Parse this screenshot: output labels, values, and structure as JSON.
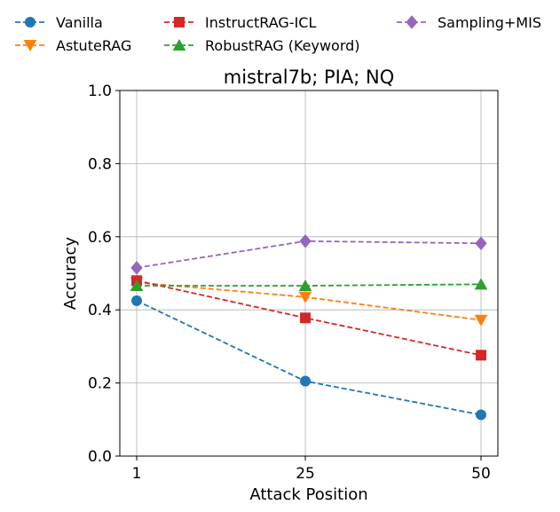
{
  "chart_data": {
    "type": "line",
    "title": "mistral7b; PIA; NQ",
    "xlabel": "Attack Position",
    "ylabel": "Accuracy",
    "x": [
      1,
      25,
      50
    ],
    "x_tick_labels": [
      "1",
      "25",
      "50"
    ],
    "ylim": [
      0.0,
      1.0
    ],
    "y_ticks": [
      0.0,
      0.2,
      0.4,
      0.6,
      0.8,
      1.0
    ],
    "y_tick_labels": [
      "0.0",
      "0.2",
      "0.4",
      "0.6",
      "0.8",
      "1.0"
    ],
    "grid": true,
    "legend_position": "top, above plot",
    "series": [
      {
        "name": "Vanilla",
        "values": [
          0.425,
          0.205,
          0.113
        ],
        "color": "#1f77b4",
        "marker": "circle"
      },
      {
        "name": "AstuteRAG",
        "values": [
          0.475,
          0.435,
          0.372
        ],
        "color": "#ff7f0e",
        "marker": "triangle-down"
      },
      {
        "name": "InstructRAG-ICL",
        "values": [
          0.48,
          0.378,
          0.276
        ],
        "color": "#d62728",
        "marker": "square"
      },
      {
        "name": "RobustRAG (Keyword)",
        "values": [
          0.466,
          0.466,
          0.47
        ],
        "color": "#2ca02c",
        "marker": "triangle-up"
      },
      {
        "name": "Sampling+MIS",
        "values": [
          0.515,
          0.588,
          0.582
        ],
        "color": "#9467bd",
        "marker": "diamond"
      }
    ]
  }
}
